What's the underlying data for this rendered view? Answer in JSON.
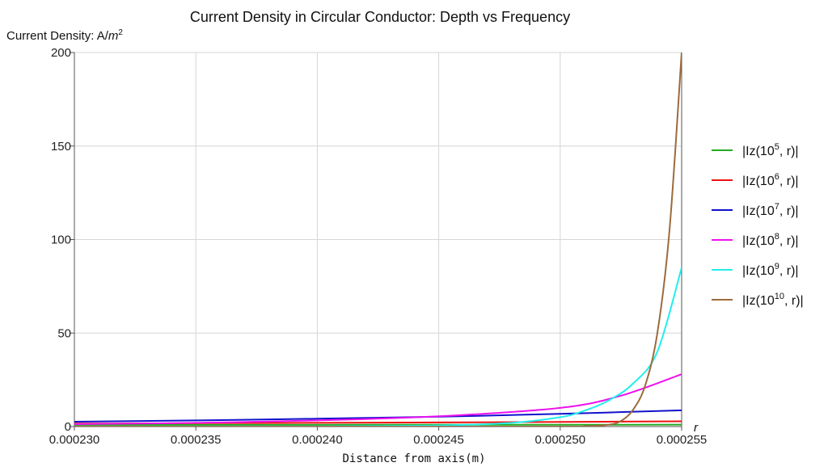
{
  "chart_data": {
    "type": "line",
    "title": "Current Density in Circular Conductor: Depth vs Frequency",
    "ylabel": {
      "text": "Current Density: A/",
      "unit_base": "m",
      "unit_exp": "2"
    },
    "xlabel": {
      "text": "Distance from axis",
      "unit": "m"
    },
    "x_axis_end_label": "r",
    "xlim": [
      0.00023,
      0.000255
    ],
    "ylim": [
      0,
      200
    ],
    "x_ticks": [
      0.00023,
      0.000235,
      0.00024,
      0.000245,
      0.00025,
      0.000255
    ],
    "x_tick_labels": [
      "0.000230",
      "0.000235",
      "0.000240",
      "0.000245",
      "0.000250",
      "0.000255"
    ],
    "y_ticks": [
      0,
      50,
      100,
      150,
      200
    ],
    "y_tick_labels": [
      "0",
      "50",
      "100",
      "150",
      "200"
    ],
    "grid": true,
    "legend_position": "right",
    "series": [
      {
        "name": "|Iz(10^5, r)|",
        "legend_base": "|Iz(10",
        "legend_exp": "5",
        "legend_tail": ", r)|",
        "color": "#22aa22",
        "x": [
          0.00023,
          0.000235,
          0.00024,
          0.000245,
          0.00025,
          0.000255
        ],
        "y": [
          0.9,
          0.92,
          0.94,
          0.96,
          0.98,
          1.0
        ]
      },
      {
        "name": "|Iz(10^6, r)|",
        "legend_base": "|Iz(10",
        "legend_exp": "6",
        "legend_tail": ", r)|",
        "color": "#ee1111",
        "x": [
          0.00023,
          0.000235,
          0.00024,
          0.000245,
          0.00025,
          0.000255
        ],
        "y": [
          1.6,
          1.8,
          2.0,
          2.2,
          2.5,
          2.8
        ]
      },
      {
        "name": "|Iz(10^7, r)|",
        "legend_base": "|Iz(10",
        "legend_exp": "7",
        "legend_tail": ", r)|",
        "color": "#1111cc",
        "x": [
          0.00023,
          0.000235,
          0.00024,
          0.000245,
          0.00025,
          0.000255
        ],
        "y": [
          2.6,
          3.3,
          4.2,
          5.3,
          6.8,
          8.7
        ]
      },
      {
        "name": "|Iz(10^8, r)|",
        "legend_base": "|Iz(10",
        "legend_exp": "8",
        "legend_tail": ", r)|",
        "color": "#ee11ee",
        "x": [
          0.00023,
          0.000235,
          0.00024,
          0.000245,
          0.00025,
          0.0002525,
          0.000255
        ],
        "y": [
          1.3,
          2.0,
          3.3,
          5.5,
          10.0,
          16.5,
          28.0
        ]
      },
      {
        "name": "|Iz(10^9, r)|",
        "legend_base": "|Iz(10",
        "legend_exp": "9",
        "legend_tail": ", r)|",
        "color": "#22eeee",
        "x": [
          0.00023,
          0.00024,
          0.000245,
          0.000248,
          0.00025,
          0.000251,
          0.000252,
          0.000253,
          0.000254,
          0.000255
        ],
        "y": [
          0.01,
          0.1,
          0.6,
          2.0,
          5.0,
          8.5,
          14.0,
          23.0,
          40.0,
          85.0
        ]
      },
      {
        "name": "|Iz(10^10, r)|",
        "legend_base": "|Iz(10",
        "legend_exp": "10",
        "legend_tail": ", r)|",
        "color": "#9c6b3c",
        "x": [
          0.00023,
          0.00025,
          0.000251,
          0.000252,
          0.0002525,
          0.000253,
          0.0002535,
          0.000254,
          0.0002545,
          0.000255
        ],
        "y": [
          0.0,
          0.0,
          0.2,
          1.0,
          3.0,
          9.0,
          22.0,
          50.0,
          105.0,
          200.0
        ]
      }
    ]
  }
}
